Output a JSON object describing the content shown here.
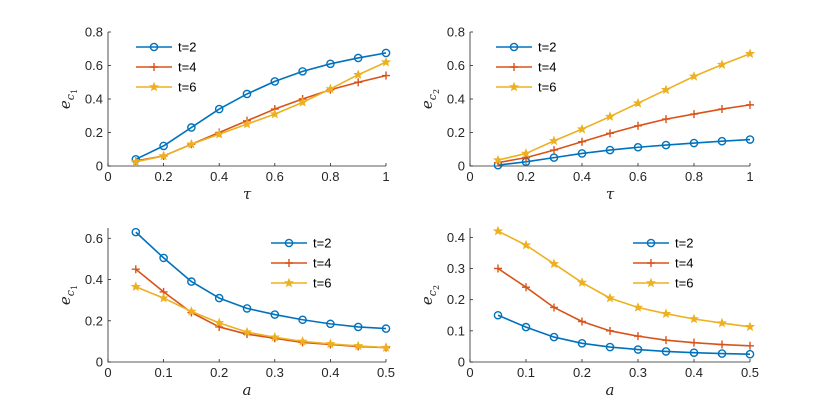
{
  "chart_data": [
    {
      "type": "line",
      "x_values": [
        0.1,
        0.2,
        0.3,
        0.4,
        0.5,
        0.6,
        0.7,
        0.8,
        0.9,
        1.0
      ],
      "xlabel": "τ",
      "ylabel": {
        "base": "e",
        "sub": "c",
        "subsub": "1"
      },
      "xlim": [
        0,
        1
      ],
      "ylim": [
        0,
        0.8
      ],
      "xticks": [
        "0",
        "0.2",
        "0.4",
        "0.6",
        "0.8",
        "1"
      ],
      "yticks": [
        "0",
        "0.2",
        "0.4",
        "0.6",
        "0.8"
      ],
      "legend_position": "top-left",
      "series": [
        {
          "name": "t=2",
          "color": "#0072BD",
          "marker": "circle",
          "values": [
            0.04,
            0.12,
            0.23,
            0.34,
            0.43,
            0.505,
            0.565,
            0.61,
            0.645,
            0.675
          ]
        },
        {
          "name": "t=4",
          "color": "#D95319",
          "marker": "plus",
          "values": [
            0.03,
            0.06,
            0.13,
            0.2,
            0.27,
            0.34,
            0.4,
            0.455,
            0.5,
            0.54
          ]
        },
        {
          "name": "t=6",
          "color": "#EDB120",
          "marker": "star",
          "values": [
            0.025,
            0.06,
            0.13,
            0.19,
            0.25,
            0.31,
            0.38,
            0.46,
            0.545,
            0.62
          ]
        }
      ]
    },
    {
      "type": "line",
      "x_values": [
        0.1,
        0.2,
        0.3,
        0.4,
        0.5,
        0.6,
        0.7,
        0.8,
        0.9,
        1.0
      ],
      "xlabel": "τ",
      "ylabel": {
        "base": "e",
        "sub": "c",
        "subsub": "2"
      },
      "xlim": [
        0,
        1
      ],
      "ylim": [
        0,
        0.8
      ],
      "xticks": [
        "0",
        "0.2",
        "0.4",
        "0.6",
        "0.8",
        "1"
      ],
      "yticks": [
        "0",
        "0.2",
        "0.4",
        "0.6",
        "0.8"
      ],
      "legend_position": "top-left",
      "series": [
        {
          "name": "t=2",
          "color": "#0072BD",
          "marker": "circle",
          "values": [
            0.005,
            0.025,
            0.05,
            0.075,
            0.095,
            0.112,
            0.125,
            0.137,
            0.148,
            0.158
          ]
        },
        {
          "name": "t=4",
          "color": "#D95319",
          "marker": "plus",
          "values": [
            0.02,
            0.05,
            0.095,
            0.145,
            0.195,
            0.24,
            0.28,
            0.31,
            0.34,
            0.365
          ]
        },
        {
          "name": "t=6",
          "color": "#EDB120",
          "marker": "star",
          "values": [
            0.035,
            0.075,
            0.15,
            0.22,
            0.295,
            0.375,
            0.455,
            0.535,
            0.605,
            0.67
          ]
        }
      ]
    },
    {
      "type": "line",
      "x_values": [
        0.05,
        0.1,
        0.15,
        0.2,
        0.25,
        0.3,
        0.35,
        0.4,
        0.45,
        0.5
      ],
      "xlabel": "a",
      "ylabel": {
        "base": "e",
        "sub": "c",
        "subsub": "1"
      },
      "xlim": [
        0,
        0.5
      ],
      "ylim": [
        0,
        0.65
      ],
      "xticks": [
        "0",
        "0.1",
        "0.2",
        "0.3",
        "0.4",
        "0.5"
      ],
      "yticks": [
        "0",
        "0.2",
        "0.4",
        "0.6"
      ],
      "legend_position": "top-right",
      "series": [
        {
          "name": "t=2",
          "color": "#0072BD",
          "marker": "circle",
          "values": [
            0.63,
            0.505,
            0.39,
            0.31,
            0.26,
            0.23,
            0.205,
            0.185,
            0.17,
            0.162
          ]
        },
        {
          "name": "t=4",
          "color": "#D95319",
          "marker": "plus",
          "values": [
            0.45,
            0.34,
            0.24,
            0.17,
            0.135,
            0.115,
            0.095,
            0.085,
            0.075,
            0.07
          ]
        },
        {
          "name": "t=6",
          "color": "#EDB120",
          "marker": "star",
          "values": [
            0.365,
            0.31,
            0.245,
            0.19,
            0.145,
            0.12,
            0.1,
            0.088,
            0.078,
            0.07
          ]
        }
      ]
    },
    {
      "type": "line",
      "x_values": [
        0.05,
        0.1,
        0.15,
        0.2,
        0.25,
        0.3,
        0.35,
        0.4,
        0.45,
        0.5
      ],
      "xlabel": "a",
      "ylabel": {
        "base": "e",
        "sub": "c",
        "subsub": "2"
      },
      "xlim": [
        0,
        0.5
      ],
      "ylim": [
        0,
        0.43
      ],
      "xticks": [
        "0",
        "0.1",
        "0.2",
        "0.3",
        "0.4",
        "0.5"
      ],
      "yticks": [
        "0",
        "0.1",
        "0.2",
        "0.3",
        "0.4"
      ],
      "legend_position": "top-right",
      "series": [
        {
          "name": "t=2",
          "color": "#0072BD",
          "marker": "circle",
          "values": [
            0.15,
            0.112,
            0.08,
            0.06,
            0.048,
            0.04,
            0.034,
            0.03,
            0.027,
            0.025
          ]
        },
        {
          "name": "t=4",
          "color": "#D95319",
          "marker": "plus",
          "values": [
            0.3,
            0.24,
            0.175,
            0.13,
            0.1,
            0.083,
            0.07,
            0.062,
            0.056,
            0.052
          ]
        },
        {
          "name": "t=6",
          "color": "#EDB120",
          "marker": "star",
          "values": [
            0.42,
            0.375,
            0.315,
            0.255,
            0.205,
            0.175,
            0.155,
            0.138,
            0.125,
            0.113
          ]
        }
      ]
    }
  ]
}
